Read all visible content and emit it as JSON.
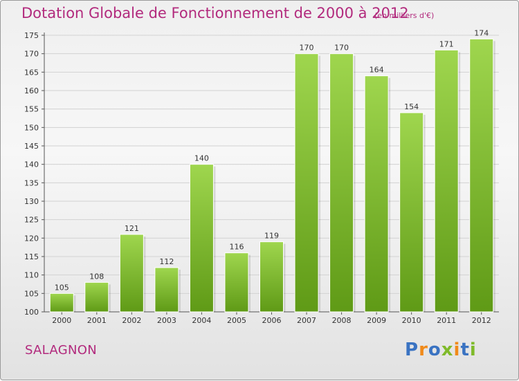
{
  "title": "Dotation Globale de Fonctionnement de 2000 à 2012",
  "subtitle": "(en milliers d'€)",
  "commune": "SALAGNON",
  "brand": {
    "letters": [
      "P",
      "r",
      "o",
      "x",
      "i",
      "t",
      "i"
    ],
    "colors": [
      "#3a73c2",
      "#f08a1a",
      "#3a73c2",
      "#7fba2a",
      "#f08a1a",
      "#3a73c2",
      "#7fba2a"
    ]
  },
  "colors": {
    "title": "#b22a7d",
    "bar_top": "#9fd64e",
    "bar_bottom": "#5f9a16",
    "grid": "#d2d2d2"
  },
  "chart_data": {
    "type": "bar",
    "title": "Dotation Globale de Fonctionnement de 2000 à 2012",
    "subtitle": "(en milliers d'€)",
    "xlabel": "",
    "ylabel": "",
    "categories": [
      "2000",
      "2001",
      "2002",
      "2003",
      "2004",
      "2005",
      "2006",
      "2007",
      "2008",
      "2009",
      "2010",
      "2011",
      "2012"
    ],
    "values": [
      105,
      108,
      121,
      112,
      140,
      116,
      119,
      170,
      170,
      164,
      154,
      171,
      174
    ],
    "ylim": [
      100,
      175
    ],
    "yticks": [
      100,
      105,
      110,
      115,
      120,
      125,
      130,
      135,
      140,
      145,
      150,
      155,
      160,
      165,
      170,
      175
    ],
    "grid": true,
    "data_labels": true
  }
}
